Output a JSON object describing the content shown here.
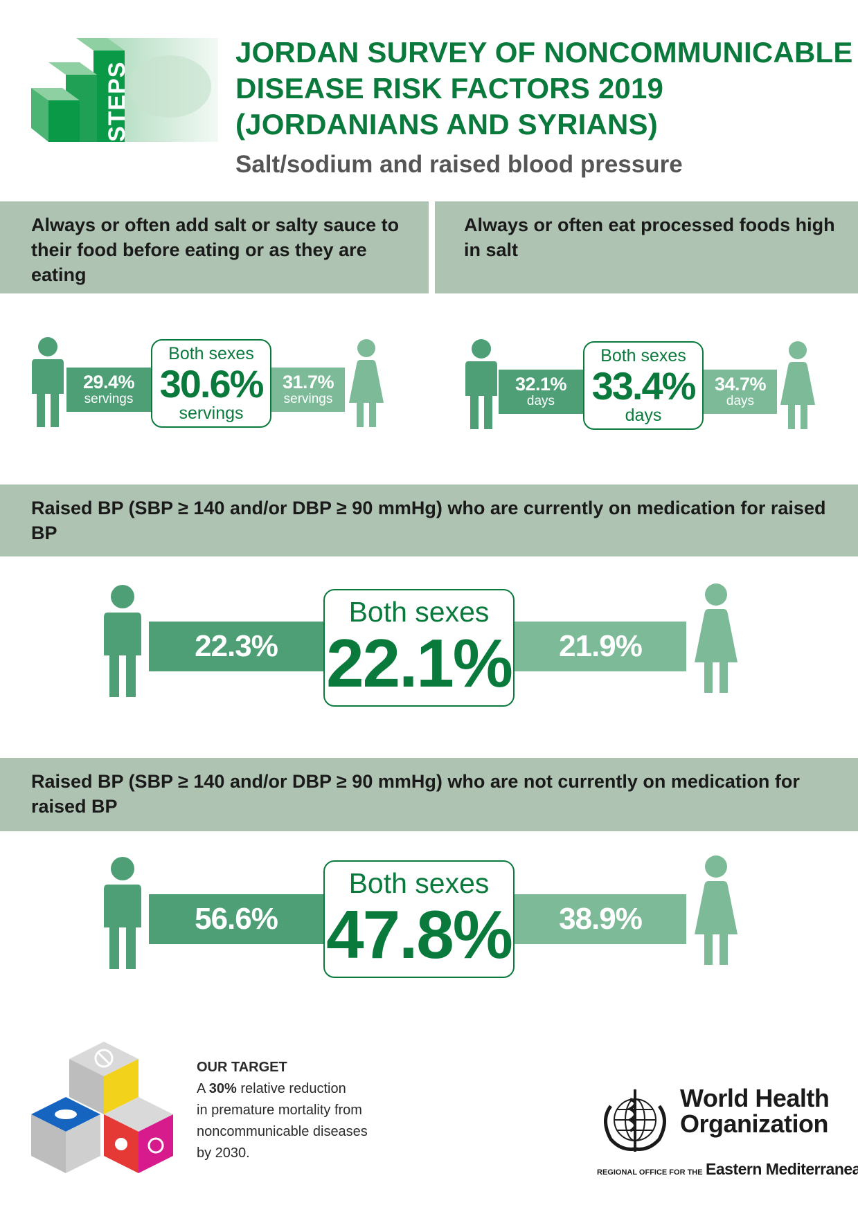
{
  "header": {
    "steps_logo_text": "STEPS",
    "title_lines": [
      "JORDAN SURVEY OF NONCOMMUNICABLE",
      "DISEASE RISK FACTORS 2019",
      "(JORDANIANS AND SYRIANS)"
    ],
    "subtitle": "Salt/sodium and raised blood pressure"
  },
  "colors": {
    "title_green": "#0a7a3c",
    "bar_grey_green": "#aec3b2",
    "male_green": "#4e9f76",
    "female_green": "#7dbb98"
  },
  "sections": {
    "salt_added": {
      "heading": "Always or often add salt or salty sauce to their food before eating or as they are eating",
      "male": {
        "value": "29.4%",
        "unit": "servings"
      },
      "both": {
        "label": "Both sexes",
        "value": "30.6%",
        "unit": "servings"
      },
      "female": {
        "value": "31.7%",
        "unit": "servings"
      }
    },
    "processed_foods": {
      "heading": "Always or often eat processed foods high in salt",
      "male": {
        "value": "32.1%",
        "unit": "days"
      },
      "both": {
        "label": "Both sexes",
        "value": "33.4%",
        "unit": "days"
      },
      "female": {
        "value": "34.7%",
        "unit": "days"
      }
    },
    "bp_on_medication": {
      "heading": "Raised BP (SBP ≥ 140 and/or DBP ≥ 90 mmHg) who are currently on medication for raised BP",
      "male": {
        "value": "22.3%"
      },
      "both": {
        "label": "Both sexes",
        "value": "22.1%"
      },
      "female": {
        "value": "21.9%"
      }
    },
    "bp_not_on_medication": {
      "heading": "Raised BP (SBP ≥ 140 and/or DBP ≥ 90 mmHg) who are not currently on medication for raised BP",
      "male": {
        "value": "56.6%"
      },
      "both": {
        "label": "Both sexes",
        "value": "47.8%"
      },
      "female": {
        "value": "38.9%"
      }
    }
  },
  "footer": {
    "target_heading": "OUR TARGET",
    "target_prefix": "A ",
    "target_bold": "30%",
    "target_lines": [
      " relative reduction",
      "in premature mortality from",
      "noncommunicable diseases",
      "by 2030."
    ],
    "who_name_line1": "World Health",
    "who_name_line2": "Organization",
    "who_region_prefix": "REGIONAL OFFICE FOR THE",
    "who_region": "Eastern Mediterranean"
  }
}
